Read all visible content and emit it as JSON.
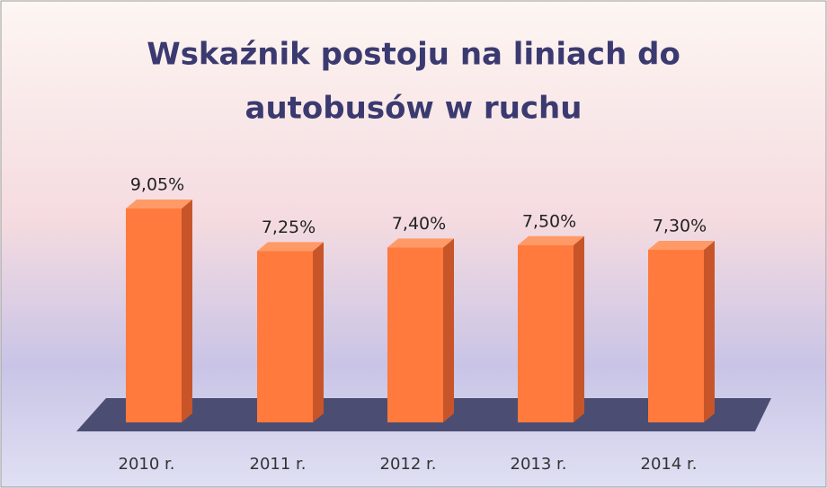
{
  "chart_data": {
    "type": "bar3d",
    "title": [
      "Wskaźnik postoju na liniach do",
      "autobusów w ruchu"
    ],
    "categories": [
      "2010 r.",
      "2011 r.",
      "2012 r.",
      "2013 r.",
      "2014 r."
    ],
    "values": [
      9.05,
      7.25,
      7.4,
      7.5,
      7.3
    ],
    "value_labels": [
      "9,05%",
      "7,25%",
      "7,40%",
      "7,50%",
      "7,30%"
    ],
    "color": "#ff7a3c"
  }
}
